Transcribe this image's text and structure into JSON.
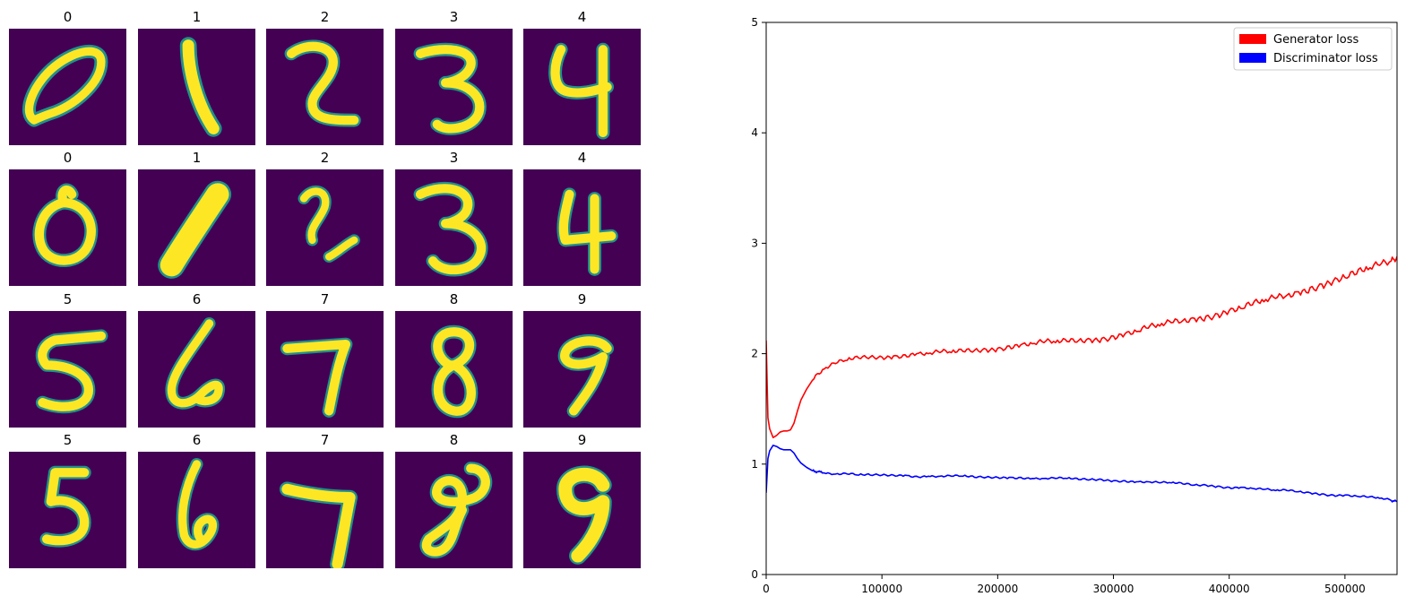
{
  "digit_grid": {
    "rows": [
      {
        "titles": [
          "0",
          "1",
          "2",
          "3",
          "4"
        ]
      },
      {
        "titles": [
          "0",
          "1",
          "2",
          "3",
          "4"
        ]
      },
      {
        "titles": [
          "5",
          "6",
          "7",
          "8",
          "9"
        ]
      },
      {
        "titles": [
          "5",
          "6",
          "7",
          "8",
          "9"
        ]
      }
    ],
    "colors": {
      "background": "#440154",
      "stroke_core": "#fde725",
      "stroke_edge": "#21918c",
      "stroke_mid": "#5ec962"
    }
  },
  "chart_data": {
    "type": "line",
    "title": "",
    "xlabel": "",
    "ylabel": "",
    "xlim": [
      0,
      545000
    ],
    "ylim": [
      0,
      5
    ],
    "x_ticks": [
      0,
      100000,
      200000,
      300000,
      400000,
      500000
    ],
    "x_tick_labels": [
      "0",
      "100000",
      "200000",
      "300000",
      "400000",
      "500000"
    ],
    "y_ticks": [
      0,
      1,
      2,
      3,
      4,
      5
    ],
    "y_tick_labels": [
      "0",
      "1",
      "2",
      "3",
      "4",
      "5"
    ],
    "grid": false,
    "legend_position": "top-right",
    "series": [
      {
        "name": "Generator loss",
        "color": "#ff0000",
        "x": [
          0,
          1500,
          3000,
          6000,
          9000,
          12000,
          15000,
          18000,
          21000,
          24000,
          27000,
          30000,
          35000,
          40000,
          45000,
          50000,
          60000,
          70000,
          80000,
          90000,
          100000,
          110000,
          120000,
          130000,
          140000,
          150000,
          160000,
          170000,
          180000,
          190000,
          200000,
          210000,
          220000,
          230000,
          240000,
          250000,
          260000,
          270000,
          280000,
          290000,
          300000,
          310000,
          320000,
          330000,
          340000,
          350000,
          360000,
          370000,
          380000,
          390000,
          400000,
          410000,
          420000,
          430000,
          440000,
          450000,
          460000,
          470000,
          480000,
          490000,
          500000,
          510000,
          520000,
          530000,
          540000,
          545000
        ],
        "y": [
          2.12,
          1.42,
          1.32,
          1.24,
          1.26,
          1.29,
          1.3,
          1.3,
          1.31,
          1.37,
          1.48,
          1.58,
          1.68,
          1.76,
          1.82,
          1.86,
          1.91,
          1.94,
          1.96,
          1.97,
          1.97,
          1.98,
          1.99,
          2.0,
          2.0,
          2.01,
          2.01,
          2.02,
          2.03,
          2.04,
          2.05,
          2.07,
          2.08,
          2.09,
          2.1,
          2.1,
          2.11,
          2.12,
          2.13,
          2.14,
          2.16,
          2.18,
          2.2,
          2.23,
          2.25,
          2.28,
          2.3,
          2.32,
          2.34,
          2.36,
          2.39,
          2.41,
          2.44,
          2.47,
          2.5,
          2.53,
          2.56,
          2.6,
          2.63,
          2.66,
          2.69,
          2.72,
          2.76,
          2.8,
          2.84,
          2.88
        ]
      },
      {
        "name": "Discriminator loss",
        "color": "#0000ff",
        "x": [
          0,
          1500,
          3000,
          6000,
          9000,
          12000,
          15000,
          18000,
          21000,
          24000,
          27000,
          30000,
          35000,
          40000,
          45000,
          50000,
          60000,
          70000,
          80000,
          90000,
          100000,
          110000,
          120000,
          130000,
          140000,
          150000,
          160000,
          170000,
          180000,
          190000,
          200000,
          210000,
          220000,
          230000,
          240000,
          250000,
          260000,
          270000,
          280000,
          290000,
          300000,
          310000,
          320000,
          330000,
          340000,
          350000,
          360000,
          370000,
          380000,
          390000,
          400000,
          410000,
          420000,
          430000,
          440000,
          450000,
          460000,
          470000,
          480000,
          490000,
          500000,
          510000,
          520000,
          530000,
          540000,
          545000
        ],
        "y": [
          0.74,
          1.05,
          1.12,
          1.17,
          1.16,
          1.14,
          1.13,
          1.13,
          1.13,
          1.1,
          1.05,
          1.01,
          0.97,
          0.94,
          0.93,
          0.92,
          0.91,
          0.91,
          0.9,
          0.9,
          0.9,
          0.9,
          0.9,
          0.89,
          0.89,
          0.89,
          0.89,
          0.89,
          0.88,
          0.88,
          0.88,
          0.88,
          0.88,
          0.87,
          0.87,
          0.87,
          0.87,
          0.86,
          0.86,
          0.86,
          0.85,
          0.85,
          0.84,
          0.84,
          0.83,
          0.83,
          0.82,
          0.81,
          0.81,
          0.8,
          0.79,
          0.79,
          0.78,
          0.77,
          0.76,
          0.76,
          0.75,
          0.74,
          0.73,
          0.72,
          0.72,
          0.71,
          0.7,
          0.69,
          0.67,
          0.66
        ]
      }
    ]
  }
}
